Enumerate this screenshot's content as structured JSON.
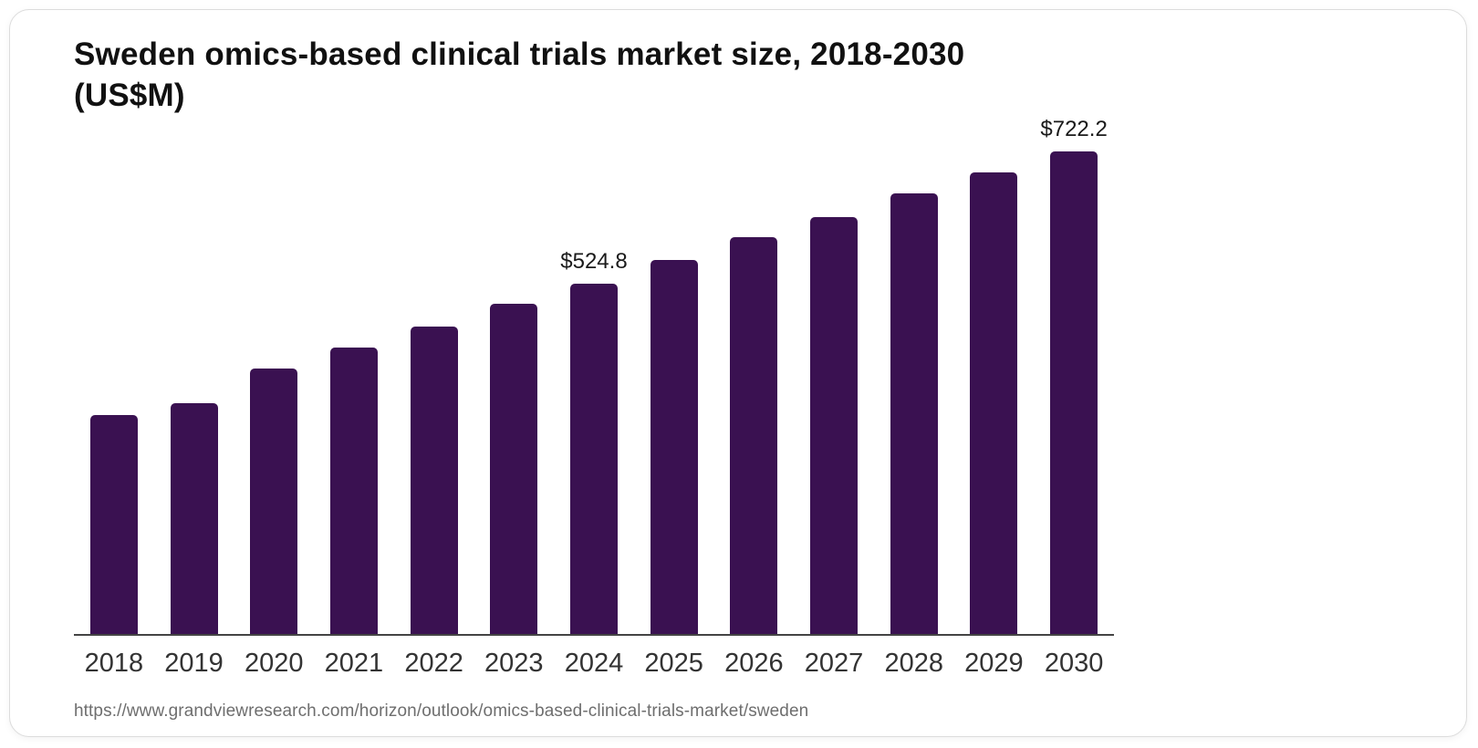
{
  "title": {
    "line1": "Sweden omics-based clinical trials market size, 2018-2030",
    "line2": "(US$M)"
  },
  "source_url": "https://www.grandviewresearch.com/horizon/outlook/omics-based-clinical-trials-market/sweden",
  "colors": {
    "bar": "#3a1151",
    "axis": "#444444",
    "title_text": "#111111",
    "tick_text": "#333333",
    "value_label_text": "#1a1a1a",
    "source_text": "#6e6e6e",
    "card_border": "#dcdcdc",
    "background": "#ffffff"
  },
  "chart_data": {
    "type": "bar",
    "title": "Sweden omics-based clinical trials market size, 2018-2030 (US$M)",
    "xlabel": "",
    "ylabel": "",
    "categories": [
      "2018",
      "2019",
      "2020",
      "2021",
      "2022",
      "2023",
      "2024",
      "2025",
      "2026",
      "2027",
      "2028",
      "2029",
      "2030"
    ],
    "values": [
      327.0,
      344.8,
      396.8,
      428.3,
      459.7,
      493.9,
      524.8,
      559.6,
      593.8,
      623.9,
      659.5,
      690.9,
      722.2
    ],
    "data_labels": [
      "",
      "",
      "",
      "",
      "",
      "",
      "$524.8",
      "",
      "",
      "",
      "",
      "",
      "$722.2"
    ],
    "ylim": [
      0,
      740
    ],
    "grid": false,
    "legend": false,
    "axis_line": "bottom-only"
  }
}
